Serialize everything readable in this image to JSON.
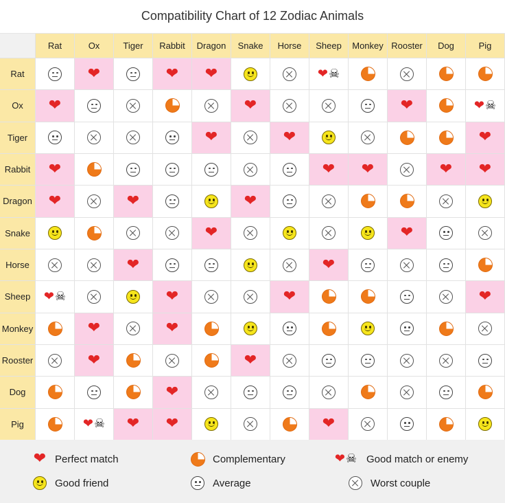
{
  "title": "Compatibility Chart of 12 Zodiac Animals",
  "colors": {
    "header_bg": "#fbe8a6",
    "highlight_bg": "#fbd1e6",
    "heart": "#e32626",
    "complementary": "#ef7a1a",
    "smile": "#f6e51c"
  },
  "animals": [
    "Rat",
    "Ox",
    "Tiger",
    "Rabbit",
    "Dragon",
    "Snake",
    "Horse",
    "Sheep",
    "Monkey",
    "Rooster",
    "Dog",
    "Pig"
  ],
  "matrix": [
    [
      "average",
      "perfect",
      "average",
      "perfect",
      "perfect",
      "friend",
      "worst",
      "enemy",
      "complementary",
      "worst",
      "complementary",
      "complementary"
    ],
    [
      "perfect",
      "average",
      "worst",
      "complementary",
      "worst",
      "perfect",
      "worst",
      "worst",
      "average",
      "perfect",
      "complementary",
      "enemy"
    ],
    [
      "average",
      "worst",
      "worst",
      "average",
      "perfect",
      "worst",
      "perfect",
      "friend",
      "worst",
      "complementary",
      "complementary",
      "perfect"
    ],
    [
      "perfect",
      "complementary",
      "average",
      "average",
      "average",
      "worst",
      "average",
      "perfect",
      "perfect",
      "worst",
      "perfect",
      "perfect"
    ],
    [
      "perfect",
      "worst",
      "perfect",
      "average",
      "friend",
      "perfect",
      "average",
      "worst",
      "complementary",
      "complementary",
      "worst",
      "friend"
    ],
    [
      "friend",
      "complementary",
      "worst",
      "worst",
      "perfect",
      "worst",
      "friend",
      "worst",
      "friend",
      "perfect",
      "average",
      "worst"
    ],
    [
      "worst",
      "worst",
      "perfect",
      "average",
      "average",
      "friend",
      "worst",
      "perfect",
      "average",
      "worst",
      "average",
      "complementary"
    ],
    [
      "enemy",
      "worst",
      "friend",
      "perfect",
      "worst",
      "worst",
      "perfect",
      "complementary",
      "complementary",
      "average",
      "worst",
      "perfect"
    ],
    [
      "complementary",
      "perfect",
      "worst",
      "perfect",
      "complementary",
      "friend",
      "average",
      "complementary",
      "friend",
      "average",
      "complementary",
      "worst"
    ],
    [
      "worst",
      "perfect",
      "complementary",
      "worst",
      "complementary",
      "perfect",
      "worst",
      "average",
      "average",
      "worst",
      "worst",
      "average"
    ],
    [
      "complementary",
      "average",
      "complementary",
      "perfect",
      "worst",
      "average",
      "average",
      "worst",
      "complementary",
      "worst",
      "average",
      "complementary"
    ],
    [
      "complementary",
      "enemy",
      "perfect",
      "perfect",
      "friend",
      "worst",
      "complementary",
      "perfect",
      "worst",
      "average",
      "complementary",
      "friend"
    ]
  ],
  "highlight": [
    [
      false,
      true,
      false,
      true,
      true,
      false,
      false,
      false,
      false,
      false,
      false,
      false
    ],
    [
      true,
      false,
      false,
      false,
      false,
      true,
      false,
      false,
      false,
      true,
      false,
      false
    ],
    [
      false,
      false,
      false,
      false,
      true,
      false,
      true,
      false,
      false,
      false,
      false,
      true
    ],
    [
      true,
      false,
      false,
      false,
      false,
      false,
      false,
      true,
      true,
      false,
      true,
      true
    ],
    [
      true,
      false,
      true,
      false,
      false,
      true,
      false,
      false,
      false,
      false,
      false,
      false
    ],
    [
      false,
      false,
      false,
      false,
      true,
      false,
      false,
      false,
      false,
      true,
      false,
      false
    ],
    [
      false,
      false,
      true,
      false,
      false,
      false,
      false,
      true,
      false,
      false,
      false,
      false
    ],
    [
      false,
      false,
      false,
      true,
      false,
      false,
      true,
      false,
      false,
      false,
      false,
      true
    ],
    [
      false,
      true,
      false,
      true,
      false,
      false,
      false,
      false,
      false,
      false,
      false,
      false
    ],
    [
      false,
      true,
      false,
      false,
      false,
      true,
      false,
      false,
      false,
      false,
      false,
      false
    ],
    [
      false,
      false,
      false,
      true,
      false,
      false,
      false,
      false,
      false,
      false,
      false,
      false
    ],
    [
      false,
      false,
      true,
      true,
      false,
      false,
      false,
      true,
      false,
      false,
      false,
      false
    ]
  ],
  "legend": {
    "perfect": "Perfect match",
    "complementary": "Complementary",
    "enemy": "Good match or enemy",
    "friend": "Good friend",
    "average": "Average",
    "worst": "Worst couple"
  }
}
